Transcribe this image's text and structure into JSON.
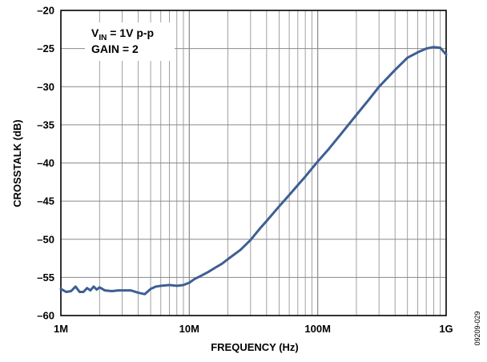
{
  "chart_data": {
    "type": "line",
    "title": "",
    "xlabel": "FREQUENCY (Hz)",
    "ylabel": "CROSSTALK (dB)",
    "xscale": "log",
    "xlim": [
      1000000,
      1000000000
    ],
    "ylim": [
      -60,
      -20
    ],
    "grid": true,
    "x_ticks": [
      {
        "value": 1000000,
        "label": "1M"
      },
      {
        "value": 10000000,
        "label": "10M"
      },
      {
        "value": 100000000,
        "label": "100M"
      },
      {
        "value": 1000000000,
        "label": "1G"
      }
    ],
    "y_ticks": [
      {
        "value": -20,
        "label": "–20"
      },
      {
        "value": -25,
        "label": "–25"
      },
      {
        "value": -30,
        "label": "–30"
      },
      {
        "value": -35,
        "label": "–35"
      },
      {
        "value": -40,
        "label": "–40"
      },
      {
        "value": -45,
        "label": "–45"
      },
      {
        "value": -50,
        "label": "–50"
      },
      {
        "value": -55,
        "label": "–55"
      },
      {
        "value": -60,
        "label": "–60"
      }
    ],
    "annotation": {
      "line1_main": "V",
      "line1_sub": "IN",
      "line1_rest": " = 1V p-p",
      "line2": "GAIN = 2"
    },
    "figure_id": "09209-029",
    "series": [
      {
        "color": "#3d5f94",
        "x": [
          1000000,
          1100000,
          1200000,
          1300000,
          1400000,
          1500000,
          1600000,
          1700000,
          1800000,
          1900000,
          2000000,
          2200000,
          2500000,
          2800000,
          3000000,
          3500000,
          4000000,
          4500000,
          5000000,
          5500000,
          6000000,
          7000000,
          8000000,
          9000000,
          10000000,
          11000000,
          12000000,
          14000000,
          16000000,
          18000000,
          20000000,
          25000000,
          30000000,
          35000000,
          40000000,
          50000000,
          60000000,
          70000000,
          80000000,
          100000000,
          120000000,
          150000000,
          200000000,
          250000000,
          300000000,
          400000000,
          500000000,
          600000000,
          700000000,
          800000000,
          900000000,
          1000000000
        ],
        "y": [
          -56.5,
          -56.9,
          -56.8,
          -56.2,
          -56.9,
          -56.9,
          -56.4,
          -56.7,
          -56.2,
          -56.6,
          -56.3,
          -56.7,
          -56.8,
          -56.7,
          -56.7,
          -56.7,
          -57.0,
          -57.2,
          -56.5,
          -56.2,
          -56.1,
          -56.0,
          -56.1,
          -56.0,
          -55.7,
          -55.2,
          -54.9,
          -54.3,
          -53.7,
          -53.2,
          -52.6,
          -51.4,
          -50.1,
          -48.7,
          -47.6,
          -45.7,
          -44.2,
          -42.9,
          -41.8,
          -39.8,
          -38.3,
          -36.3,
          -33.7,
          -31.7,
          -30.0,
          -27.8,
          -26.2,
          -25.5,
          -25.0,
          -24.8,
          -24.9,
          -25.8
        ]
      }
    ]
  }
}
